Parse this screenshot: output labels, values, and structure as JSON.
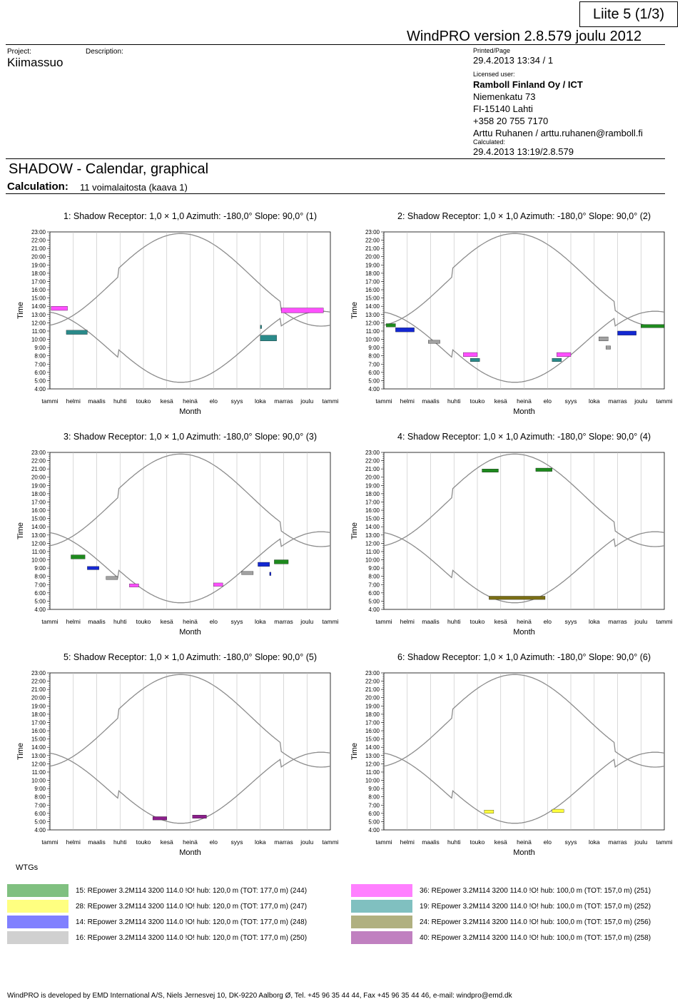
{
  "header": {
    "liite": "Liite 5 (1/3)",
    "windpro": "WindPRO version 2.8.579  joulu 2012",
    "project_label": "Project:",
    "project_name": "Kiimassuo",
    "description_label": "Description:",
    "printed_label": "Printed/Page",
    "printed_value": "29.4.2013 13:34 / 1",
    "licensed_label": "Licensed user:",
    "licensee": "Ramboll Finland Oy / ICT",
    "address1": "Niemenkatu 73",
    "address2": "FI-15140 Lahti",
    "phone": "+358 20 755 7170",
    "contact": "Arttu Ruhanen / arttu.ruhanen@ramboll.fi",
    "calculated_label": "Calculated:",
    "calculated_value": "29.4.2013 13:19/2.8.579"
  },
  "section": {
    "title": "SHADOW - Calendar, graphical",
    "calc_label": "Calculation:",
    "calc_value": "11 voimalaitosta (kaava 1)"
  },
  "axes": {
    "ylabel": "Time",
    "xlabel": "Month",
    "yticks": [
      "4:00",
      "5:00",
      "6:00",
      "7:00",
      "8:00",
      "9:00",
      "10:00",
      "11:00",
      "12:00",
      "13:00",
      "14:00",
      "15:00",
      "16:00",
      "17:00",
      "18:00",
      "19:00",
      "20:00",
      "21:00",
      "22:00",
      "23:00"
    ],
    "months": [
      "tammi",
      "helmi",
      "maalis",
      "huhti",
      "touko",
      "kesä",
      "heinä",
      "elo",
      "syys",
      "loka",
      "marras",
      "joulu",
      "tammi"
    ]
  },
  "colors": {
    "wtg15": "#1e8a1e",
    "wtg28": "#ffff3c",
    "wtg14": "#1428d2",
    "wtg16": "#a0a0a0",
    "wtg36": "#ff50ff",
    "wtg19": "#2a8a8a",
    "wtg24": "#7a6e14",
    "wtg40": "#8c1e8c",
    "curve": "#8c8c8c",
    "grid": "#bfbfbf"
  },
  "chart_data": [
    {
      "type": "scatter",
      "title": "1: Shadow Receptor: 1,0 × 1,0 Azimuth: -180,0° Slope: 90,0° (1)",
      "xlabel": "Month",
      "ylabel": "Time",
      "xlim": [
        0,
        12
      ],
      "ylim": [
        4,
        23
      ],
      "series": [
        {
          "wtg": "wtg36",
          "segments": [
            [
              0.05,
              0.75,
              13.5,
              14.0
            ],
            [
              9.9,
              11.7,
              13.2,
              13.8
            ]
          ]
        },
        {
          "wtg": "wtg19",
          "segments": [
            [
              0.7,
              1.6,
              10.6,
              11.1
            ],
            [
              9.0,
              9.7,
              9.8,
              10.5
            ],
            [
              9.0,
              9.05,
              11.3,
              11.7
            ]
          ]
        }
      ]
    },
    {
      "type": "scatter",
      "title": "2: Shadow Receptor: 1,0 × 1,0 Azimuth: -180,0° Slope: 90,0° (2)",
      "xlabel": "Month",
      "ylabel": "Time",
      "xlim": [
        0,
        12
      ],
      "ylim": [
        4,
        23
      ],
      "series": [
        {
          "wtg": "wtg15",
          "segments": [
            [
              0.1,
              0.5,
              11.5,
              11.9
            ],
            [
              11.0,
              12.0,
              11.4,
              11.8
            ]
          ]
        },
        {
          "wtg": "wtg14",
          "segments": [
            [
              0.5,
              1.3,
              10.9,
              11.4
            ],
            [
              10.0,
              10.8,
              10.5,
              11.0
            ]
          ]
        },
        {
          "wtg": "wtg16",
          "segments": [
            [
              1.9,
              2.4,
              9.5,
              9.9
            ],
            [
              9.2,
              9.6,
              9.8,
              10.3
            ],
            [
              9.5,
              9.7,
              8.8,
              9.2
            ]
          ]
        },
        {
          "wtg": "wtg36",
          "segments": [
            [
              3.4,
              4.0,
              7.9,
              8.4
            ],
            [
              7.4,
              8.0,
              7.9,
              8.4
            ]
          ]
        },
        {
          "wtg": "wtg19",
          "segments": [
            [
              3.7,
              4.1,
              7.3,
              7.7
            ],
            [
              7.2,
              7.6,
              7.3,
              7.7
            ]
          ]
        }
      ]
    },
    {
      "type": "scatter",
      "title": "3: Shadow Receptor: 1,0 × 1,0 Azimuth: -180,0° Slope: 90,0° (3)",
      "xlabel": "Month",
      "ylabel": "Time",
      "xlim": [
        0,
        12
      ],
      "ylim": [
        4,
        23
      ],
      "series": [
        {
          "wtg": "wtg15",
          "segments": [
            [
              0.9,
              1.5,
              10.1,
              10.6
            ],
            [
              9.6,
              10.2,
              9.5,
              10.0
            ]
          ]
        },
        {
          "wtg": "wtg14",
          "segments": [
            [
              1.6,
              2.1,
              8.8,
              9.2
            ],
            [
              8.9,
              9.4,
              9.2,
              9.7
            ],
            [
              9.4,
              9.45,
              8.1,
              8.5
            ]
          ]
        },
        {
          "wtg": "wtg16",
          "segments": [
            [
              2.4,
              2.9,
              7.6,
              8.0
            ],
            [
              8.2,
              8.7,
              8.2,
              8.6
            ]
          ]
        },
        {
          "wtg": "wtg36",
          "segments": [
            [
              3.4,
              3.8,
              6.7,
              7.1
            ],
            [
              7.0,
              7.4,
              6.8,
              7.2
            ]
          ]
        }
      ]
    },
    {
      "type": "scatter",
      "title": "4: Shadow Receptor: 1,0 × 1,0 Azimuth: -180,0° Slope: 90,0° (4)",
      "xlabel": "Month",
      "ylabel": "Time",
      "xlim": [
        0,
        12
      ],
      "ylim": [
        4,
        23
      ],
      "series": [
        {
          "wtg": "wtg15",
          "segments": [
            [
              4.2,
              4.9,
              20.6,
              21.0
            ],
            [
              6.5,
              7.2,
              20.7,
              21.1
            ]
          ]
        },
        {
          "wtg": "wtg24",
          "segments": [
            [
              4.5,
              6.9,
              5.2,
              5.6
            ]
          ]
        }
      ]
    },
    {
      "type": "scatter",
      "title": "5: Shadow Receptor: 1,0 × 1,0 Azimuth: -180,0° Slope: 90,0° (5)",
      "xlabel": "Month",
      "ylabel": "Time",
      "xlim": [
        0,
        12
      ],
      "ylim": [
        4,
        23
      ],
      "series": [
        {
          "wtg": "wtg40",
          "segments": [
            [
              4.4,
              5.0,
              5.2,
              5.6
            ],
            [
              6.1,
              6.7,
              5.4,
              5.8
            ]
          ]
        }
      ]
    },
    {
      "type": "scatter",
      "title": "6: Shadow Receptor: 1,0 × 1,0 Azimuth: -180,0° Slope: 90,0° (6)",
      "xlabel": "Month",
      "ylabel": "Time",
      "xlim": [
        0,
        12
      ],
      "ylim": [
        4,
        23
      ],
      "series": [
        {
          "wtg": "wtg28",
          "segments": [
            [
              4.3,
              4.7,
              6.0,
              6.4
            ],
            [
              7.2,
              7.7,
              6.1,
              6.5
            ]
          ]
        }
      ]
    }
  ],
  "legend": {
    "title": "WTGs",
    "items": [
      {
        "key": "wtg15",
        "label": "15: REpower 3.2M114 3200 114.0 !O! hub: 120,0 m (TOT: 177,0 m) (244)",
        "color": "#80c080"
      },
      {
        "key": "wtg28",
        "label": "28: REpower 3.2M114 3200 114.0 !O! hub: 120,0 m (TOT: 177,0 m) (247)",
        "color": "#ffff80"
      },
      {
        "key": "wtg14",
        "label": "14: REpower 3.2M114 3200 114.0 !O! hub: 120,0 m (TOT: 177,0 m) (248)",
        "color": "#8080ff"
      },
      {
        "key": "wtg16",
        "label": "16: REpower 3.2M114 3200 114.0 !O! hub: 120,0 m (TOT: 177,0 m) (250)",
        "color": "#d0d0d0"
      },
      {
        "key": "wtg36",
        "label": "36: REpower 3.2M114 3200 114.0 !O! hub: 100,0 m (TOT: 157,0 m) (251)",
        "color": "#ff80ff"
      },
      {
        "key": "wtg19",
        "label": "19: REpower 3.2M114 3200 114.0 !O! hub: 100,0 m (TOT: 157,0 m) (252)",
        "color": "#80c0c0"
      },
      {
        "key": "wtg24",
        "label": "24: REpower 3.2M114 3200 114.0 !O! hub: 100,0 m (TOT: 157,0 m) (256)",
        "color": "#b0b080"
      },
      {
        "key": "wtg40",
        "label": "40: REpower 3.2M114 3200 114.0 !O! hub: 100,0 m (TOT: 157,0 m) (258)",
        "color": "#c080c0"
      }
    ]
  },
  "footer": "WindPRO is developed by EMD International A/S, Niels Jernesvej 10, DK-9220 Aalborg Ø, Tel. +45 96 35 44 44, Fax +45 96 35 44 46, e-mail: windpro@emd.dk"
}
